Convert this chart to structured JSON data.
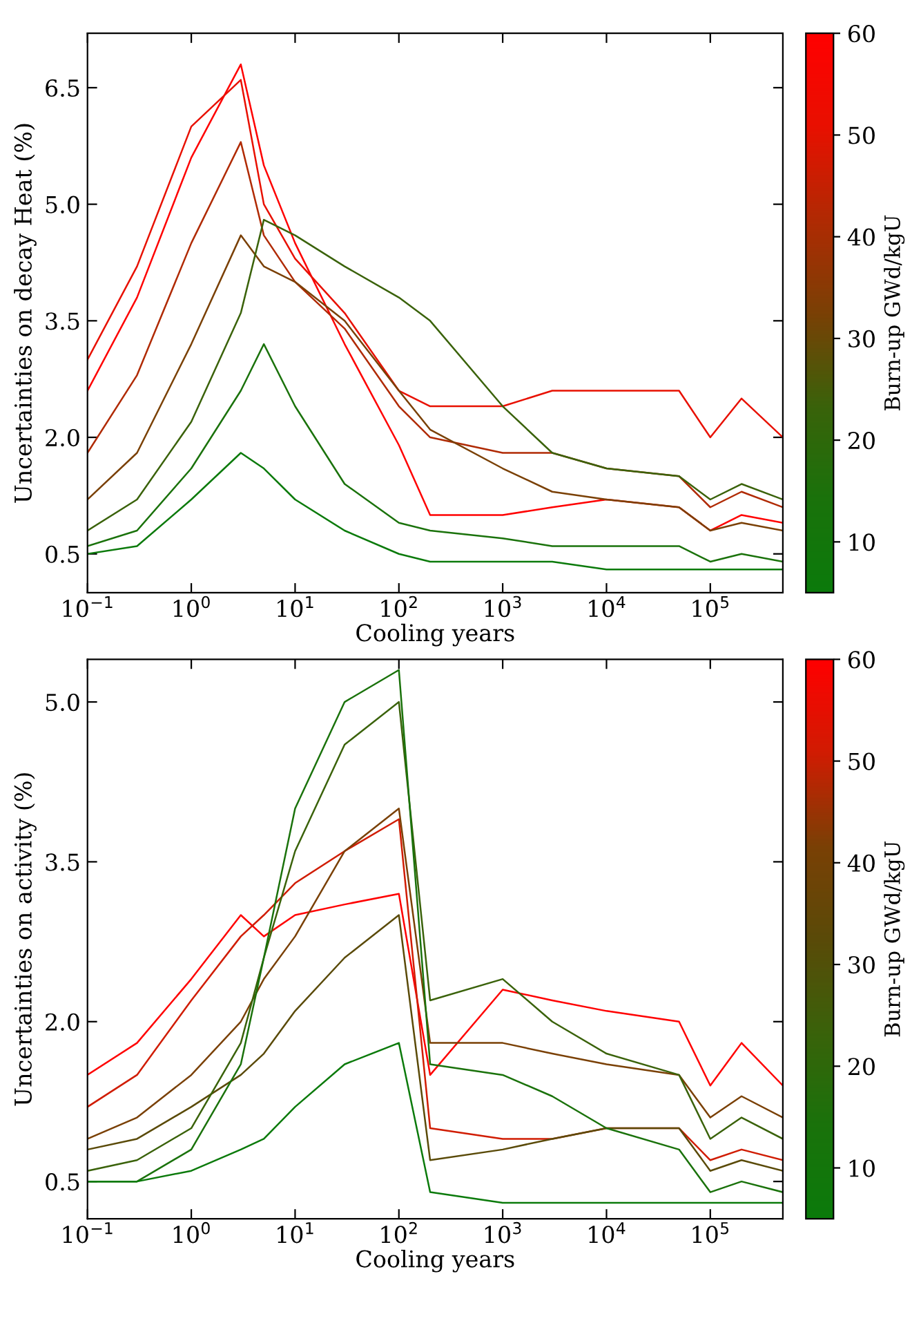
{
  "chart_data": [
    {
      "type": "line",
      "xlabel": "Cooling years",
      "ylabel": "Uncertainties on decay Heat (%)",
      "clabel": "Burn-up GWd/kgU",
      "log": "x",
      "grid": false,
      "legend": false,
      "marker": "none",
      "line_style": "solid",
      "x": [
        0.1,
        0.3,
        1,
        3,
        5,
        10,
        30,
        100,
        200,
        1000,
        3000,
        10000,
        50000,
        100000,
        200000,
        500000
      ],
      "xlim": [
        0.1,
        500000
      ],
      "xticks": [
        {
          "value": 0.1,
          "label": "10$^{−1}$"
        },
        {
          "value": 1,
          "label": "10$^{0}$"
        },
        {
          "value": 10,
          "label": "10$^{1}$"
        },
        {
          "value": 100,
          "label": "10$^{2}$"
        },
        {
          "value": 1000,
          "label": "10$^{3}$"
        },
        {
          "value": 10000,
          "label": "10$^{4}$"
        },
        {
          "value": 100000,
          "label": "10$^{5}$"
        }
      ],
      "ylim": [
        0.0,
        7.2
      ],
      "yticks": [
        {
          "value": 0.5,
          "label": "0.5"
        },
        {
          "value": 2,
          "label": "2.0"
        },
        {
          "value": 3.5,
          "label": "3.5"
        },
        {
          "value": 5,
          "label": "5.0"
        },
        {
          "value": 6.5,
          "label": "6.5"
        }
      ],
      "clim": [
        5,
        60
      ],
      "cticks": [
        10,
        20,
        30,
        40,
        50,
        60
      ],
      "series": [
        {
          "color": "#ff0000",
          "values": [
            2.6,
            3.8,
            5.6,
            6.8,
            5.5,
            4.5,
            3.2,
            1.9,
            1.0,
            1.0,
            1.1,
            1.2,
            1.1,
            0.8,
            1.0,
            0.9
          ]
        },
        {
          "color": "#e81000",
          "values": [
            3.0,
            4.2,
            6.0,
            6.6,
            5.0,
            4.3,
            3.6,
            2.6,
            2.4,
            2.4,
            2.6,
            2.6,
            2.6,
            2.0,
            2.5,
            2.0
          ]
        },
        {
          "color": "#b02a03",
          "values": [
            1.8,
            2.8,
            4.5,
            5.8,
            4.6,
            4.0,
            3.4,
            2.4,
            2.0,
            1.8,
            1.8,
            1.6,
            1.5,
            1.1,
            1.3,
            1.1
          ]
        },
        {
          "color": "#7a4005",
          "values": [
            1.2,
            1.8,
            3.2,
            4.6,
            4.2,
            4.0,
            3.5,
            2.6,
            2.1,
            1.6,
            1.3,
            1.2,
            1.1,
            0.8,
            0.9,
            0.8
          ]
        },
        {
          "color": "#3a620a",
          "values": [
            0.8,
            1.2,
            2.2,
            3.6,
            4.8,
            4.6,
            4.2,
            3.8,
            3.5,
            2.4,
            1.8,
            1.6,
            1.5,
            1.2,
            1.4,
            1.2
          ]
        },
        {
          "color": "#1a720b",
          "values": [
            0.6,
            0.8,
            1.6,
            2.6,
            3.2,
            2.4,
            1.4,
            0.9,
            0.8,
            0.7,
            0.6,
            0.6,
            0.6,
            0.4,
            0.5,
            0.4
          ]
        },
        {
          "color": "#0b7a0b",
          "values": [
            0.5,
            0.6,
            1.2,
            1.8,
            1.6,
            1.2,
            0.8,
            0.5,
            0.4,
            0.4,
            0.4,
            0.3,
            0.3,
            0.3,
            0.3,
            0.3
          ]
        }
      ]
    },
    {
      "type": "line",
      "xlabel": "Cooling years",
      "ylabel": "Uncertainties on activity (%)",
      "clabel": "Burn-up GWd/kgU",
      "log": "x",
      "grid": false,
      "legend": false,
      "marker": "none",
      "line_style": "solid",
      "x": [
        0.1,
        0.3,
        1,
        3,
        5,
        10,
        30,
        100,
        200,
        1000,
        3000,
        10000,
        50000,
        100000,
        200000,
        500000
      ],
      "xlim": [
        0.1,
        500000
      ],
      "xticks": [
        {
          "value": 0.1,
          "label": "10$^{−1}$"
        },
        {
          "value": 1,
          "label": "10$^{0}$"
        },
        {
          "value": 10,
          "label": "10$^{1}$"
        },
        {
          "value": 100,
          "label": "10$^{2}$"
        },
        {
          "value": 1000,
          "label": "10$^{3}$"
        },
        {
          "value": 10000,
          "label": "10$^{4}$"
        },
        {
          "value": 100000,
          "label": "10$^{5}$"
        }
      ],
      "ylim": [
        0.15,
        5.4
      ],
      "yticks": [
        {
          "value": 0.5,
          "label": "0.5"
        },
        {
          "value": 2,
          "label": "2.0"
        },
        {
          "value": 3.5,
          "label": "3.5"
        },
        {
          "value": 5,
          "label": "5.0"
        }
      ],
      "clim": [
        5,
        60
      ],
      "cticks": [
        10,
        20,
        30,
        40,
        50,
        60
      ],
      "series": [
        {
          "color": "#ff0000",
          "values": [
            1.5,
            1.8,
            2.4,
            3.0,
            2.8,
            3.0,
            3.1,
            3.2,
            1.5,
            2.3,
            2.2,
            2.1,
            2.0,
            1.4,
            1.8,
            1.4
          ]
        },
        {
          "color": "#d01c02",
          "values": [
            1.2,
            1.5,
            2.2,
            2.8,
            3.0,
            3.3,
            3.6,
            3.9,
            1.0,
            0.9,
            0.9,
            1.0,
            1.0,
            0.7,
            0.8,
            0.7
          ]
        },
        {
          "color": "#7a4005",
          "values": [
            0.9,
            1.1,
            1.5,
            2.0,
            2.4,
            2.8,
            3.6,
            4.0,
            1.8,
            1.8,
            1.7,
            1.6,
            1.5,
            1.1,
            1.3,
            1.1
          ]
        },
        {
          "color": "#5a4a08",
          "values": [
            0.8,
            0.9,
            1.2,
            1.5,
            1.7,
            2.1,
            2.6,
            3.0,
            0.7,
            0.8,
            0.9,
            1.0,
            1.0,
            0.6,
            0.7,
            0.6
          ]
        },
        {
          "color": "#3a620a",
          "values": [
            0.6,
            0.7,
            1.0,
            1.8,
            2.6,
            3.6,
            4.6,
            5.0,
            2.2,
            2.4,
            2.0,
            1.7,
            1.5,
            0.9,
            1.1,
            0.9
          ]
        },
        {
          "color": "#1a720b",
          "values": [
            0.5,
            0.5,
            0.8,
            1.6,
            2.6,
            4.0,
            5.0,
            5.3,
            1.6,
            1.5,
            1.3,
            1.0,
            0.8,
            0.4,
            0.5,
            0.4
          ]
        },
        {
          "color": "#0b7a0b",
          "values": [
            0.5,
            0.5,
            0.6,
            0.8,
            0.9,
            1.2,
            1.6,
            1.8,
            0.4,
            0.3,
            0.3,
            0.3,
            0.3,
            0.3,
            0.3,
            0.3
          ]
        }
      ]
    }
  ]
}
